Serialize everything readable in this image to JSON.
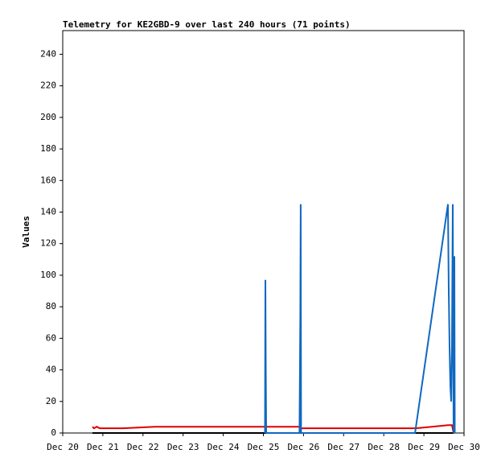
{
  "chart_data": {
    "type": "line",
    "title": "Telemetry for KE2GBD-9 over last 240 hours (71 points)",
    "ylabel": "Values",
    "xlim": [
      0,
      10
    ],
    "ylim": [
      0,
      255
    ],
    "xticks": [
      {
        "value": 0,
        "label": "Dec 20"
      },
      {
        "value": 1,
        "label": "Dec 21"
      },
      {
        "value": 2,
        "label": "Dec 22"
      },
      {
        "value": 3,
        "label": "Dec 23"
      },
      {
        "value": 4,
        "label": "Dec 24"
      },
      {
        "value": 5,
        "label": "Dec 25"
      },
      {
        "value": 6,
        "label": "Dec 26"
      },
      {
        "value": 7,
        "label": "Dec 27"
      },
      {
        "value": 8,
        "label": "Dec 28"
      },
      {
        "value": 9,
        "label": "Dec 29"
      },
      {
        "value": 10,
        "label": "Dec 30"
      }
    ],
    "yticks": [
      0,
      20,
      40,
      60,
      80,
      100,
      120,
      140,
      160,
      180,
      200,
      220,
      240
    ],
    "series": [
      {
        "color": "#000000",
        "x": [
          0.74,
          9.74
        ],
        "values": [
          0,
          0
        ]
      },
      {
        "color": "#e00000",
        "x": [
          0.74,
          0.78,
          0.85,
          0.92,
          1.05,
          1.5,
          2.3,
          3,
          4,
          5,
          5.9,
          5.95,
          7,
          8.8,
          9.2,
          9.6,
          9.7,
          9.74
        ],
        "values": [
          4,
          3,
          4,
          3,
          3,
          3,
          4,
          4,
          4,
          4,
          4,
          3,
          3,
          3,
          4,
          5,
          5,
          0
        ]
      },
      {
        "color": "#1068c0",
        "x": [
          5.04,
          5.05,
          5.06,
          5.07,
          5.9,
          5.92,
          5.93,
          5.94,
          8.78,
          9.6,
          9.62,
          9.64,
          9.66,
          9.68,
          9.7,
          9.72,
          9.74,
          9.76,
          9.77
        ],
        "values": [
          0,
          97,
          40,
          0,
          0,
          73,
          145,
          0,
          0,
          145,
          90,
          55,
          30,
          20,
          55,
          145,
          0,
          112,
          0
        ]
      }
    ]
  }
}
